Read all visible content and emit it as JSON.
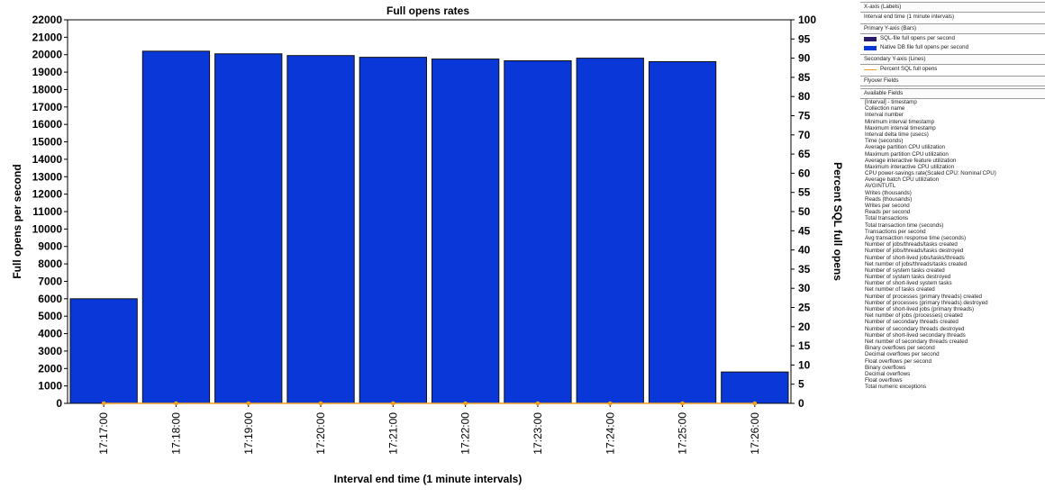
{
  "chart_data": {
    "type": "bar",
    "title": "Full opens rates",
    "xlabel": "Interval end time (1 minute intervals)",
    "ylabel": "Full opens per second",
    "y2label": "Percent SQL full opens",
    "categories": [
      "17:17:00",
      "17:18:00",
      "17:19:00",
      "17:20:00",
      "17:21:00",
      "17:22:00",
      "17:23:00",
      "17:24:00",
      "17:25:00",
      "17:26:00"
    ],
    "series": [
      {
        "name": "SQL-file full opens per second",
        "color": "#2b1a6b",
        "values": [
          0,
          0,
          0,
          0,
          0,
          0,
          0,
          0,
          0,
          0
        ]
      },
      {
        "name": "Native DB file full opens per second",
        "color": "#0a37d8",
        "values": [
          6000,
          20200,
          20050,
          19950,
          19850,
          19750,
          19650,
          19800,
          19600,
          1800
        ]
      }
    ],
    "line_series": [
      {
        "name": "Percent SQL full opens",
        "color": "#f0a020",
        "values": [
          0,
          0,
          0,
          0,
          0,
          0,
          0,
          0,
          0,
          0
        ]
      }
    ],
    "ylim": [
      0,
      22000
    ],
    "yticks": [
      0,
      1000,
      2000,
      3000,
      4000,
      5000,
      6000,
      7000,
      8000,
      9000,
      10000,
      11000,
      12000,
      13000,
      14000,
      15000,
      16000,
      17000,
      18000,
      19000,
      20000,
      21000,
      22000
    ],
    "y2lim": [
      0,
      100
    ],
    "y2ticks": [
      0,
      5,
      10,
      15,
      20,
      25,
      30,
      35,
      40,
      45,
      50,
      55,
      60,
      65,
      70,
      75,
      80,
      85,
      90,
      95,
      100
    ],
    "grid": false
  },
  "panel": {
    "xaxis_header": "X-axis (Labels)",
    "xaxis_field": "Interval end time (1 minute intervals)",
    "primary_header": "Primary Y-axis (Bars)",
    "primary_fields": [
      {
        "label": "SQL-file full opens per second",
        "color": "#2b1a6b"
      },
      {
        "label": "Native DB file full opens per second",
        "color": "#0a37d8"
      }
    ],
    "secondary_header": "Secondary Y-axis (Lines)",
    "secondary_fields": [
      {
        "label": "Percent SQL full opens",
        "color": "#f0a020"
      }
    ],
    "flyover_header": "Flyover Fields",
    "available_header": "Available Fields",
    "available_fields": [
      "[Interval] - timestamp",
      "Collection name",
      "Interval number",
      "Minimum interval timestamp",
      "Maximum interval timestamp",
      "Interval delta time (usecs)",
      "Time (seconds)",
      "Average partition CPU utilization",
      "Maximum partition CPU utilization",
      "Average interactive feature utilization",
      "Maximum interactive CPU utilization",
      "CPU power-savings rate(Scaled CPU: Nominal CPU)",
      "Average batch CPU utilization",
      "AVGINTUTL",
      "Writes (thousands)",
      "Reads (thousands)",
      "Writes per second",
      "Reads per second",
      "Total transactions",
      "Total transaction time (seconds)",
      "Transactions per second",
      "Avg transaction response time (seconds)",
      "Number of jobs/threads/tasks created",
      "Number of jobs/threads/tasks destroyed",
      "Number of short-lived jobs/tasks/threads",
      "Net number of jobs/threads/tasks created",
      "Number of system tasks created",
      "Number of system tasks destroyed",
      "Number of short-lived system tasks",
      "Net number of tasks created",
      "Number of processes (primary threads) created",
      "Number of processes (primary threads) destroyed",
      "Number of short-lived jobs (primary threads)",
      "Net number of jobs (processes) created",
      "Number of secondary threads created",
      "Number of secondary threads destroyed",
      "Number of short-lived secondary threads",
      "Net number of secondary threads created",
      "Binary overflows per second",
      "Decimal overflows per second",
      "Float overflows per second",
      "Binary overflows",
      "Decimal overflows",
      "Float overflows",
      "Total numeric exceptions"
    ]
  }
}
